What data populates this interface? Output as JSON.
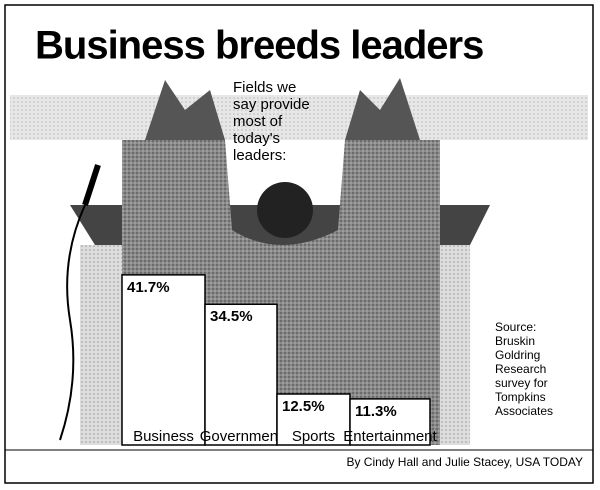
{
  "chart_data": {
    "type": "bar",
    "title": "Business breeds leaders",
    "subtitle": [
      "Fields we",
      "say provide",
      "most of",
      "today's",
      "leaders:"
    ],
    "categories": [
      "Business",
      "Government",
      "Sports",
      "Entertainment"
    ],
    "values": [
      41.7,
      34.5,
      12.5,
      11.3
    ],
    "value_labels": [
      "41.7%",
      "34.5%",
      "12.5%",
      "11.3%"
    ],
    "color": "#ffffff",
    "source": [
      "Source:",
      "Bruskin",
      "Goldring",
      "Research",
      "survey for",
      "Tompkins",
      "Associates"
    ],
    "credit": "By Cindy Hall and Julie Stacey, USA TODAY"
  }
}
